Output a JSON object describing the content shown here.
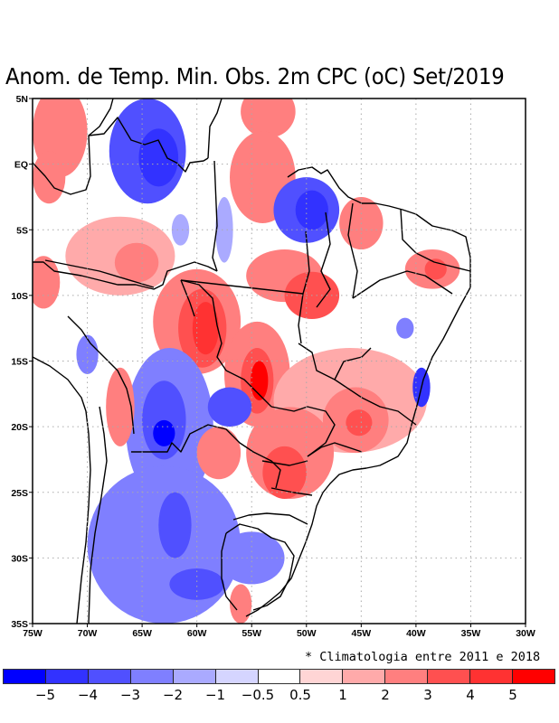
{
  "title": "Anom. de Temp. Min. Obs. 2m CPC (oC) Set/2019",
  "footnote": "* Climatologia entre 2011 e 2018",
  "map": {
    "projection": "lat-lon",
    "lon_range": [
      -75,
      -30
    ],
    "lat_range": [
      -35,
      5
    ],
    "grid": "dotted",
    "lon_ticks": [
      {
        "value": -75,
        "label": "75W"
      },
      {
        "value": -70,
        "label": "70W"
      },
      {
        "value": -65,
        "label": "65W"
      },
      {
        "value": -60,
        "label": "60W"
      },
      {
        "value": -55,
        "label": "55W"
      },
      {
        "value": -50,
        "label": "50W"
      },
      {
        "value": -45,
        "label": "45W"
      },
      {
        "value": -40,
        "label": "40W"
      },
      {
        "value": -35,
        "label": "35W"
      },
      {
        "value": -30,
        "label": "30W"
      }
    ],
    "lat_ticks": [
      {
        "value": 5,
        "label": "5N"
      },
      {
        "value": 0,
        "label": "EQ"
      },
      {
        "value": -5,
        "label": "5S"
      },
      {
        "value": -10,
        "label": "10S"
      },
      {
        "value": -15,
        "label": "15S"
      },
      {
        "value": -20,
        "label": "20S"
      },
      {
        "value": -25,
        "label": "25S"
      },
      {
        "value": -30,
        "label": "30S"
      },
      {
        "value": -35,
        "label": "35S"
      }
    ],
    "anomaly_blobs": [
      {
        "region": "north-west Amazon",
        "lon": -72.5,
        "lat": 2.5,
        "rx": 2.5,
        "ry": 3.5,
        "level": 2
      },
      {
        "region": "north-west Amazon south",
        "lon": -73.5,
        "lat": -1,
        "rx": 1.5,
        "ry": 2,
        "level": 2
      },
      {
        "region": "Roraima/Venezuela border",
        "lon": -64.5,
        "lat": 1,
        "rx": 3.5,
        "ry": 4,
        "level": -3
      },
      {
        "region": "Roraima core",
        "lon": -63.5,
        "lat": 0.5,
        "rx": 1.8,
        "ry": 2.2,
        "level": -4
      },
      {
        "region": "Amapa north",
        "lon": -53.5,
        "lat": 4,
        "rx": 2.5,
        "ry": 2,
        "level": 2
      },
      {
        "region": "Para north",
        "lon": -54,
        "lat": -1,
        "rx": 3,
        "ry": 3.5,
        "level": 2
      },
      {
        "region": "Para east",
        "lon": -50,
        "lat": -3.5,
        "rx": 3,
        "ry": 2.5,
        "level": -3
      },
      {
        "region": "Para east core",
        "lon": -49.5,
        "lat": -3.5,
        "rx": 1.5,
        "ry": 1.5,
        "level": -4
      },
      {
        "region": "Maranhao",
        "lon": -45,
        "lat": -4.5,
        "rx": 2,
        "ry": 2,
        "level": 2
      },
      {
        "region": "Amazonas west",
        "lon": -67,
        "lat": -7,
        "rx": 5,
        "ry": 3,
        "level": 1
      },
      {
        "region": "Amazonas west core",
        "lon": -65.5,
        "lat": -7.5,
        "rx": 2,
        "ry": 1.5,
        "level": 2
      },
      {
        "region": "Acre",
        "lon": -74,
        "lat": -9,
        "rx": 1.5,
        "ry": 2,
        "level": 2
      },
      {
        "region": "Amazonas center small",
        "lon": -61.5,
        "lat": -5,
        "rx": 0.8,
        "ry": 1.2,
        "level": -1
      },
      {
        "region": "Para center",
        "lon": -57.5,
        "lat": -5,
        "rx": 0.8,
        "ry": 2.5,
        "level": -1
      },
      {
        "region": "Para south/Tocantins",
        "lon": -52,
        "lat": -8.5,
        "rx": 3.5,
        "ry": 2,
        "level": 2
      },
      {
        "region": "Tocantins",
        "lon": -49.5,
        "lat": -10,
        "rx": 2.5,
        "ry": 1.8,
        "level": 3
      },
      {
        "region": "Rondonia/Mato Grosso",
        "lon": -60,
        "lat": -12,
        "rx": 4,
        "ry": 4,
        "level": 2
      },
      {
        "region": "Rondonia core",
        "lon": -59.5,
        "lat": -12.5,
        "rx": 2.2,
        "ry": 3,
        "level": 3
      },
      {
        "region": "Rondonia hot",
        "lon": -59.2,
        "lat": -12.5,
        "rx": 1.2,
        "ry": 2,
        "level": 4
      },
      {
        "region": "Mato Grosso south",
        "lon": -54.5,
        "lat": -16,
        "rx": 3,
        "ry": 4,
        "level": 2
      },
      {
        "region": "Mato Grosso south core",
        "lon": -54.5,
        "lat": -16.5,
        "rx": 1.5,
        "ry": 2.5,
        "level": 3
      },
      {
        "region": "Mato Grosso south hot",
        "lon": -54.3,
        "lat": -16.5,
        "rx": 0.8,
        "ry": 1.5,
        "level": 5
      },
      {
        "region": "Piaui/Pernambuco",
        "lon": -38.5,
        "lat": -8,
        "rx": 2.5,
        "ry": 1.5,
        "level": 2
      },
      {
        "region": "Pernambuco core",
        "lon": -38.2,
        "lat": -8,
        "rx": 1,
        "ry": 0.8,
        "level": 3
      },
      {
        "region": "Bahia small",
        "lon": -41,
        "lat": -12.5,
        "rx": 0.8,
        "ry": 0.8,
        "level": -2
      },
      {
        "region": "Goias/Minas",
        "lon": -46,
        "lat": -18,
        "rx": 7,
        "ry": 4,
        "level": 1
      },
      {
        "region": "Minas core",
        "lon": -45.5,
        "lat": -19.5,
        "rx": 3,
        "ry": 2.5,
        "level": 2
      },
      {
        "region": "Minas hot",
        "lon": -45.2,
        "lat": -19.7,
        "rx": 1.2,
        "ry": 1,
        "level": 3
      },
      {
        "region": "Sao Paulo/Parana",
        "lon": -51.5,
        "lat": -22,
        "rx": 4,
        "ry": 3.5,
        "level": 2
      },
      {
        "region": "Parana core",
        "lon": -52,
        "lat": -23.5,
        "rx": 2,
        "ry": 2,
        "level": 3
      },
      {
        "region": "Espirito Santo coast",
        "lon": -39.5,
        "lat": -17,
        "rx": 0.8,
        "ry": 1.5,
        "level": -4
      },
      {
        "region": "Bolivia east",
        "lon": -62.5,
        "lat": -20,
        "rx": 4,
        "ry": 6,
        "level": -2
      },
      {
        "region": "Bolivia core",
        "lon": -63,
        "lat": -19.5,
        "rx": 2,
        "ry": 3,
        "level": -3
      },
      {
        "region": "Bolivia hot",
        "lon": -63,
        "lat": -20.5,
        "rx": 1,
        "ry": 1,
        "level": -5
      },
      {
        "region": "Mato Grosso do Sul blue",
        "lon": -57,
        "lat": -18.5,
        "rx": 2,
        "ry": 1.5,
        "level": -3
      },
      {
        "region": "Bolivia west red",
        "lon": -67,
        "lat": -18.5,
        "rx": 1.3,
        "ry": 3,
        "level": 2
      },
      {
        "region": "Bolivia north blue",
        "lon": -70,
        "lat": -14.5,
        "rx": 1,
        "ry": 1.5,
        "level": -2
      },
      {
        "region": "Argentina north",
        "lon": -63,
        "lat": -29,
        "rx": 7,
        "ry": 6,
        "level": -2
      },
      {
        "region": "Argentina core",
        "lon": -62,
        "lat": -27.5,
        "rx": 1.5,
        "ry": 2.5,
        "level": -3
      },
      {
        "region": "Argentina south",
        "lon": -60,
        "lat": -32,
        "rx": 2.5,
        "ry": 1.2,
        "level": -3
      },
      {
        "region": "Rio Grande do Sul",
        "lon": -55,
        "lat": -30,
        "rx": 3,
        "ry": 2,
        "level": -2
      },
      {
        "region": "Uruguay red",
        "lon": -56,
        "lat": -33.5,
        "rx": 1,
        "ry": 1.5,
        "level": 2
      },
      {
        "region": "Paraguay red",
        "lon": -58,
        "lat": -22,
        "rx": 2,
        "ry": 2,
        "level": 2
      }
    ]
  },
  "colorbar": {
    "colors": [
      "#0000ff",
      "#3232ff",
      "#5050ff",
      "#7f7fff",
      "#aaaaff",
      "#d5d5ff",
      "#ffffff",
      "#ffd5d5",
      "#ffaaaa",
      "#ff7f7f",
      "#ff5050",
      "#ff3232",
      "#ff0000"
    ],
    "levels": [
      "-5",
      "-4",
      "-3",
      "-2",
      "-1",
      "-0.5",
      "0.5",
      "1",
      "2",
      "3",
      "4",
      "5"
    ],
    "level_to_color_index": {
      "-5": 0,
      "-4": 1,
      "-3": 2,
      "-2": 3,
      "-1": 4,
      "1": 8,
      "2": 9,
      "3": 10,
      "4": 11,
      "5": 12
    }
  }
}
